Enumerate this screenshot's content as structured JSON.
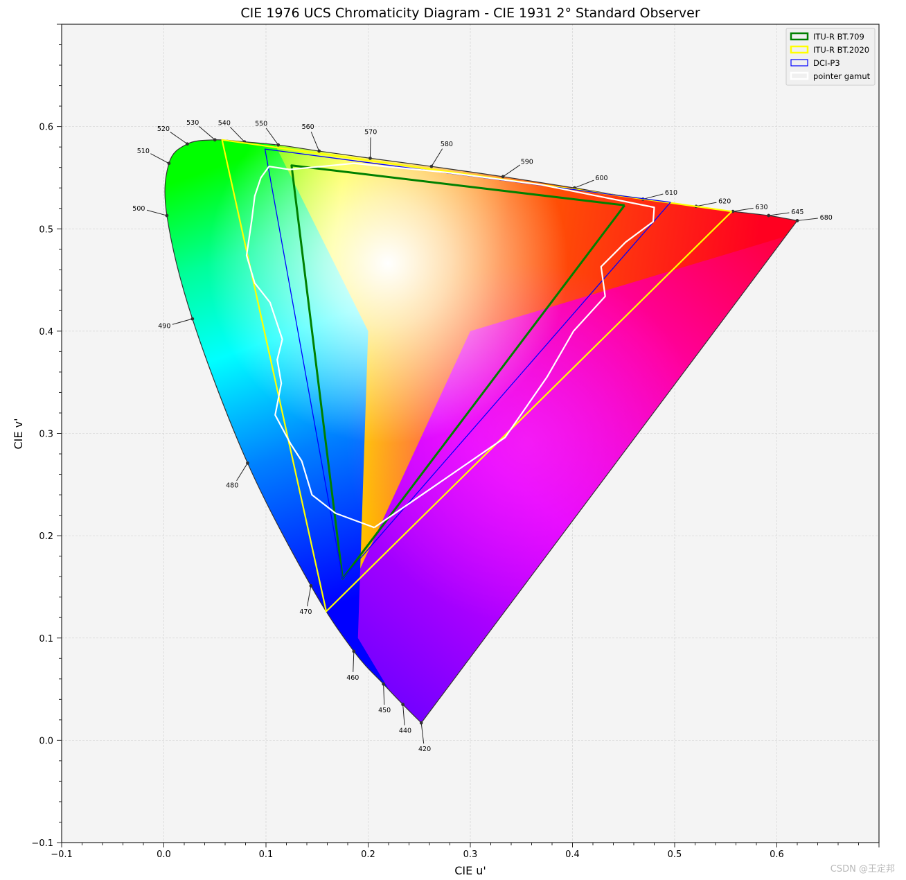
{
  "chart_data": {
    "type": "scatter",
    "title": "CIE 1976 UCS Chromaticity Diagram - CIE 1931 2° Standard Observer",
    "xlabel": "CIE u'",
    "ylabel": "CIE v'",
    "xlim": [
      -0.1,
      0.7
    ],
    "ylim": [
      -0.1,
      0.7
    ],
    "grid": true,
    "legend_position": "top-right",
    "x_ticks": [
      -0.1,
      0.0,
      0.1,
      0.2,
      0.3,
      0.4,
      0.5,
      0.6
    ],
    "x_tick_labels": [
      "−0.1",
      "0.0",
      "0.1",
      "0.2",
      "0.3",
      "0.4",
      "0.5",
      "0.6"
    ],
    "y_ticks": [
      -0.1,
      0.0,
      0.1,
      0.2,
      0.3,
      0.4,
      0.5,
      0.6
    ],
    "y_tick_labels": [
      "−0.1",
      "0.0",
      "0.1",
      "0.2",
      "0.3",
      "0.4",
      "0.5",
      "0.6"
    ],
    "spectral_locus": {
      "wavelength_markers": [
        {
          "nm": "420",
          "u": 0.252,
          "v": 0.017
        },
        {
          "nm": "440",
          "u": 0.234,
          "v": 0.035
        },
        {
          "nm": "450",
          "u": 0.215,
          "v": 0.055
        },
        {
          "nm": "460",
          "u": 0.186,
          "v": 0.087
        },
        {
          "nm": "470",
          "u": 0.144,
          "v": 0.151
        },
        {
          "nm": "480",
          "u": 0.082,
          "v": 0.271
        },
        {
          "nm": "490",
          "u": 0.028,
          "v": 0.412
        },
        {
          "nm": "500",
          "u": 0.003,
          "v": 0.513
        },
        {
          "nm": "510",
          "u": 0.005,
          "v": 0.564
        },
        {
          "nm": "520",
          "u": 0.023,
          "v": 0.583
        },
        {
          "nm": "530",
          "u": 0.05,
          "v": 0.587
        },
        {
          "nm": "540",
          "u": 0.079,
          "v": 0.585
        },
        {
          "nm": "550",
          "u": 0.112,
          "v": 0.582
        },
        {
          "nm": "560",
          "u": 0.152,
          "v": 0.576
        },
        {
          "nm": "570",
          "u": 0.202,
          "v": 0.569
        },
        {
          "nm": "580",
          "u": 0.262,
          "v": 0.561
        },
        {
          "nm": "590",
          "u": 0.332,
          "v": 0.551
        },
        {
          "nm": "600",
          "u": 0.402,
          "v": 0.54
        },
        {
          "nm": "610",
          "u": 0.469,
          "v": 0.529
        },
        {
          "nm": "620",
          "u": 0.521,
          "v": 0.522
        },
        {
          "nm": "630",
          "u": 0.557,
          "v": 0.517
        },
        {
          "nm": "645",
          "u": 0.592,
          "v": 0.513
        },
        {
          "nm": "680",
          "u": 0.62,
          "v": 0.508
        }
      ]
    },
    "series": [
      {
        "name": "ITU-R BT.709",
        "color": "#008000",
        "u": [
          0.451,
          0.125,
          0.175,
          0.451
        ],
        "v": [
          0.523,
          0.562,
          0.158,
          0.523
        ]
      },
      {
        "name": "ITU-R BT.2020",
        "color": "#ffff00",
        "u": [
          0.556,
          0.057,
          0.159,
          0.556
        ],
        "v": [
          0.517,
          0.587,
          0.126,
          0.517
        ]
      },
      {
        "name": "DCI-P3",
        "color": "#0000ff",
        "u": [
          0.496,
          0.099,
          0.175,
          0.496
        ],
        "v": [
          0.526,
          0.578,
          0.158,
          0.526
        ]
      },
      {
        "name": "pointer gamut",
        "color": "#ffffff",
        "u": [
          0.206,
          0.168,
          0.145,
          0.135,
          0.124,
          0.109,
          0.115,
          0.111,
          0.116,
          0.111,
          0.104,
          0.089,
          0.081,
          0.086,
          0.089,
          0.095,
          0.103,
          0.123,
          0.186,
          0.278,
          0.37,
          0.48,
          0.479,
          0.452,
          0.428,
          0.432,
          0.401,
          0.375,
          0.334,
          0.206
        ],
        "v": [
          0.208,
          0.222,
          0.24,
          0.273,
          0.29,
          0.318,
          0.349,
          0.372,
          0.392,
          0.407,
          0.428,
          0.447,
          0.474,
          0.508,
          0.532,
          0.55,
          0.561,
          0.558,
          0.564,
          0.555,
          0.543,
          0.521,
          0.507,
          0.487,
          0.463,
          0.434,
          0.4,
          0.355,
          0.296,
          0.208
        ]
      }
    ]
  },
  "watermark": "CSDN @王定邦"
}
